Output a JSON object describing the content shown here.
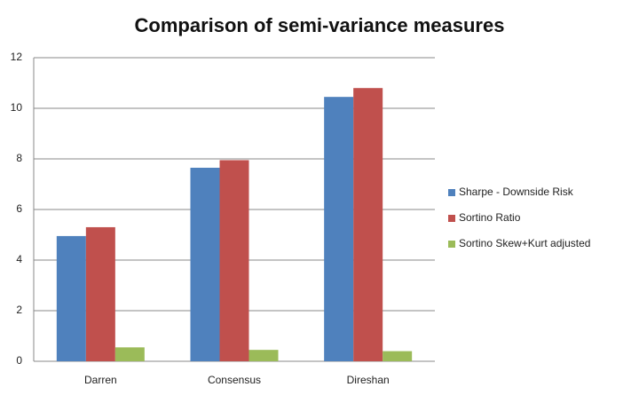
{
  "chart_data": {
    "type": "bar",
    "title": "Comparison of semi-variance measures",
    "categories": [
      "Darren",
      "Consensus",
      "Direshan"
    ],
    "series": [
      {
        "name": "Sharpe - Downside Risk",
        "color": "#4f81bd",
        "values": [
          4.95,
          7.65,
          10.45
        ]
      },
      {
        "name": "Sortino Ratio",
        "color": "#c0504d",
        "values": [
          5.3,
          7.95,
          10.8
        ]
      },
      {
        "name": "Sortino Skew+Kurt adjusted",
        "color": "#9bbb59",
        "values": [
          0.55,
          0.45,
          0.4
        ]
      }
    ],
    "ylim": [
      0,
      12
    ],
    "yticks": [
      0,
      2,
      4,
      6,
      8,
      10,
      12
    ],
    "grid": true,
    "legend": "right"
  }
}
